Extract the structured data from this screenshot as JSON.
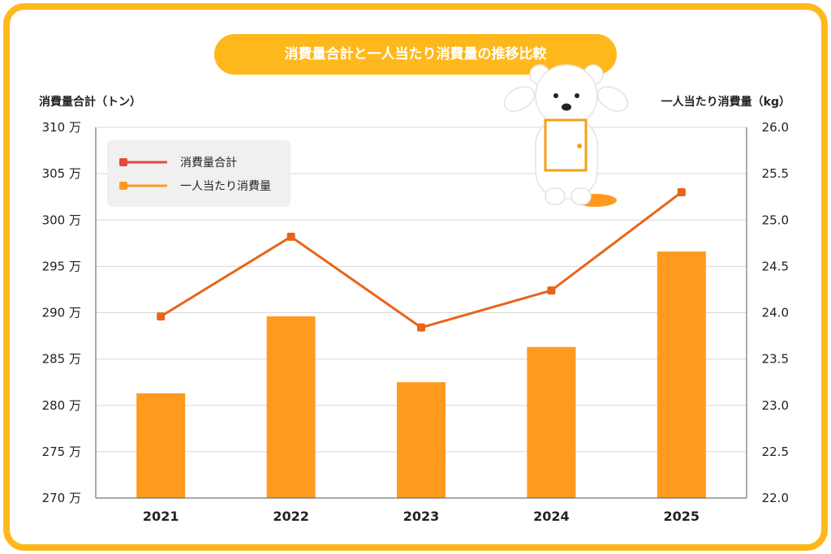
{
  "colors": {
    "frame": "#ffb81c",
    "bar": "#ff9a1f",
    "line": "#e8641a",
    "grid": "#d8d8d8",
    "legend_bg": "#f0f0f0"
  },
  "chart_data": {
    "type": "bar",
    "title": "消費量合計と一人当たり消費量の推移比較",
    "left_axis_label": "消費量合計（トン）",
    "right_axis_label": "一人当たり消費量（kg）",
    "categories": [
      "2021",
      "2022",
      "2023",
      "2024",
      "2025"
    ],
    "left_ticks": [
      "270 万",
      "275 万",
      "280 万",
      "285 万",
      "290 万",
      "295 万",
      "300 万",
      "305 万",
      "310 万"
    ],
    "right_ticks": [
      "22.0",
      "22.5",
      "23.0",
      "23.5",
      "24.0",
      "24.5",
      "25.0",
      "25.5",
      "26.0"
    ],
    "left_ylim": [
      270,
      310
    ],
    "right_ylim": [
      22.0,
      26.0
    ],
    "grid": true,
    "legend_position": "top-left",
    "series": [
      {
        "name": "消費量合計",
        "type": "line",
        "axis": "left",
        "values": [
          289.6,
          298.2,
          288.4,
          292.4,
          303.0
        ]
      },
      {
        "name": "一人当たり消費量",
        "type": "bar",
        "axis": "right",
        "values": [
          23.13,
          23.96,
          23.25,
          23.63,
          24.66
        ]
      }
    ]
  },
  "mascot": "bear-holding-door-icon"
}
